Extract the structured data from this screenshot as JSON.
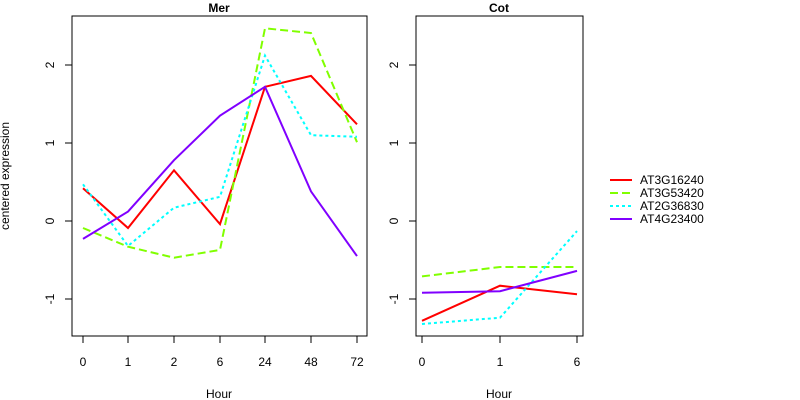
{
  "chart_data": [
    {
      "type": "line",
      "title": "Mer",
      "xlabel": "Hour",
      "ylabel": "centered expression",
      "categories": [
        "0",
        "1",
        "2",
        "6",
        "24",
        "48",
        "72"
      ],
      "yticks": [
        "2",
        "1",
        "0",
        "-1"
      ],
      "ylim": [
        -1.5,
        2.6
      ],
      "series": [
        {
          "name": "AT3G16240",
          "color": "#ff0000",
          "dash": "solid",
          "values": [
            0.42,
            -0.09,
            0.65,
            -0.04,
            1.72,
            1.86,
            1.24
          ]
        },
        {
          "name": "AT3G53420",
          "color": "#80ff00",
          "dash": "dashed",
          "values": [
            -0.09,
            -0.33,
            -0.47,
            -0.37,
            2.47,
            2.41,
            1.01
          ]
        },
        {
          "name": "AT2G36830",
          "color": "#00ffff",
          "dash": "dotted",
          "values": [
            0.47,
            -0.32,
            0.17,
            0.31,
            2.12,
            1.1,
            1.08
          ]
        },
        {
          "name": "AT4G23400",
          "color": "#8000ff",
          "dash": "solid",
          "values": [
            -0.23,
            0.12,
            0.78,
            1.35,
            1.72,
            0.38,
            -0.45
          ]
        }
      ]
    },
    {
      "type": "line",
      "title": "Cot",
      "xlabel": "Hour",
      "ylabel": "",
      "categories": [
        "0",
        "1",
        "6"
      ],
      "yticks": [
        "2",
        "1",
        "0",
        "-1"
      ],
      "ylim": [
        -1.5,
        2.6
      ],
      "series": [
        {
          "name": "AT3G16240",
          "color": "#ff0000",
          "dash": "solid",
          "values": [
            -1.28,
            -0.83,
            -0.94
          ]
        },
        {
          "name": "AT3G53420",
          "color": "#80ff00",
          "dash": "dashed",
          "values": [
            -0.71,
            -0.59,
            -0.59
          ]
        },
        {
          "name": "AT2G36830",
          "color": "#00ffff",
          "dash": "dotted",
          "values": [
            -1.32,
            -1.24,
            -0.13
          ]
        },
        {
          "name": "AT4G23400",
          "color": "#8000ff",
          "dash": "solid",
          "values": [
            -0.92,
            -0.9,
            -0.64
          ]
        }
      ]
    }
  ],
  "legend": {
    "position": "right",
    "entries": [
      {
        "label": "AT3G16240",
        "color": "#ff0000",
        "dash": "solid"
      },
      {
        "label": "AT3G53420",
        "color": "#80ff00",
        "dash": "dashed"
      },
      {
        "label": "AT2G36830",
        "color": "#00ffff",
        "dash": "dotted"
      },
      {
        "label": "AT4G23400",
        "color": "#8000ff",
        "dash": "solid"
      }
    ]
  }
}
